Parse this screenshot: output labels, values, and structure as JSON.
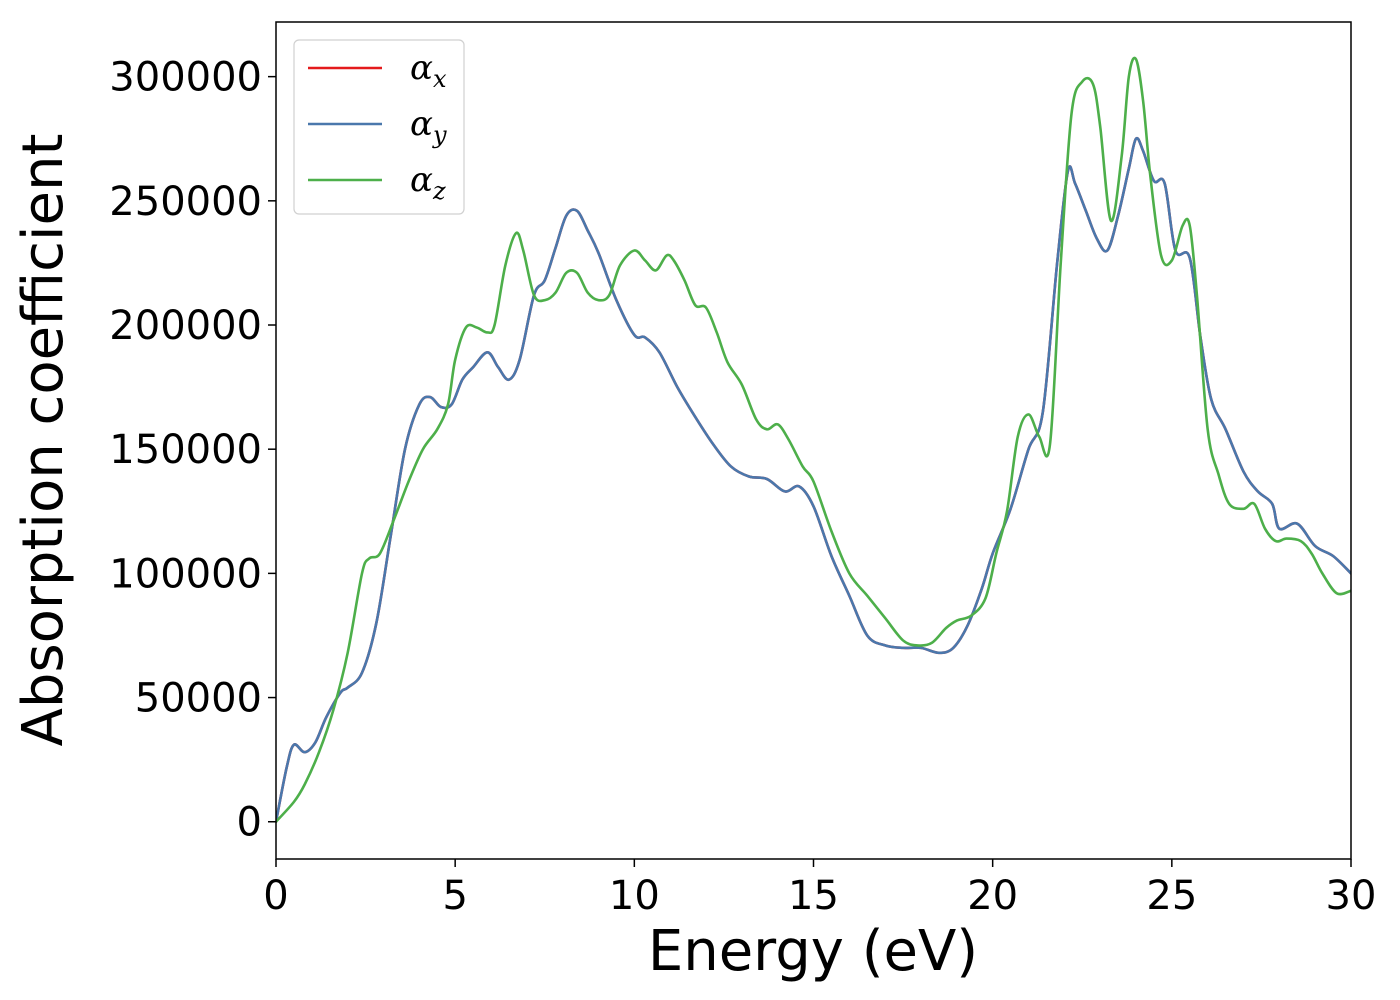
{
  "chart_data": {
    "type": "line",
    "title": "",
    "xlabel": "Energy (eV)",
    "ylabel": "Absorption coefficient",
    "xlim": [
      0,
      30
    ],
    "ylim": [
      -15000,
      322000
    ],
    "xticks": [
      0,
      5,
      10,
      15,
      20,
      25,
      30
    ],
    "yticks": [
      0,
      50000,
      100000,
      150000,
      200000,
      250000,
      300000
    ],
    "grid": false,
    "legend_position": "top-left",
    "series": [
      {
        "name": "α_x",
        "label_base": "α",
        "label_sub": "x",
        "color": "#e41a1c",
        "x": [
          0,
          0.3,
          0.5,
          0.8,
          1.1,
          1.4,
          1.8,
          2.0,
          2.4,
          2.8,
          3.2,
          3.6,
          4.0,
          4.3,
          4.6,
          4.9,
          5.2,
          5.5,
          5.9,
          6.2,
          6.5,
          6.8,
          7.2,
          7.5,
          7.8,
          8.1,
          8.4,
          8.7,
          9.0,
          9.5,
          10.0,
          10.3,
          10.7,
          11.2,
          11.7,
          12.2,
          12.7,
          13.2,
          13.7,
          14.2,
          14.6,
          15.0,
          15.5,
          16.0,
          16.5,
          17.0,
          17.5,
          18.0,
          18.5,
          18.9,
          19.3,
          19.7,
          20.0,
          20.5,
          21.0,
          21.4,
          21.8,
          22.1,
          22.3,
          22.6,
          22.9,
          23.2,
          23.5,
          23.8,
          24.0,
          24.2,
          24.5,
          24.8,
          25.1,
          25.5,
          25.8,
          26.1,
          26.5,
          27.0,
          27.4,
          27.8,
          28.0,
          28.5,
          29.0,
          29.5,
          30.0
        ],
        "values": [
          0,
          22000,
          31000,
          28000,
          32000,
          42000,
          52000,
          54000,
          60000,
          80000,
          115000,
          150000,
          168000,
          171000,
          167000,
          168000,
          178000,
          183000,
          189000,
          183000,
          178000,
          186000,
          212000,
          218000,
          231000,
          244000,
          246000,
          238000,
          229000,
          210000,
          196000,
          195000,
          189000,
          175000,
          163000,
          152000,
          143000,
          139000,
          138000,
          133000,
          135000,
          127000,
          107000,
          91000,
          75000,
          71000,
          70000,
          70000,
          68000,
          70000,
          79000,
          94000,
          108000,
          126000,
          150000,
          165000,
          225000,
          262000,
          257000,
          246000,
          235000,
          230000,
          244000,
          263000,
          275000,
          270000,
          258000,
          257000,
          230000,
          227000,
          195000,
          170000,
          158000,
          141000,
          133000,
          128000,
          118000,
          120000,
          111000,
          107000,
          100000
        ]
      },
      {
        "name": "α_y",
        "label_base": "α",
        "label_sub": "y",
        "color": "#4a78ac",
        "x": [
          0,
          0.3,
          0.5,
          0.8,
          1.1,
          1.4,
          1.8,
          2.0,
          2.4,
          2.8,
          3.2,
          3.6,
          4.0,
          4.3,
          4.6,
          4.9,
          5.2,
          5.5,
          5.9,
          6.2,
          6.5,
          6.8,
          7.2,
          7.5,
          7.8,
          8.1,
          8.4,
          8.7,
          9.0,
          9.5,
          10.0,
          10.3,
          10.7,
          11.2,
          11.7,
          12.2,
          12.7,
          13.2,
          13.7,
          14.2,
          14.6,
          15.0,
          15.5,
          16.0,
          16.5,
          17.0,
          17.5,
          18.0,
          18.5,
          18.9,
          19.3,
          19.7,
          20.0,
          20.5,
          21.0,
          21.4,
          21.8,
          22.1,
          22.3,
          22.6,
          22.9,
          23.2,
          23.5,
          23.8,
          24.0,
          24.2,
          24.5,
          24.8,
          25.1,
          25.5,
          25.8,
          26.1,
          26.5,
          27.0,
          27.4,
          27.8,
          28.0,
          28.5,
          29.0,
          29.5,
          30.0
        ],
        "values": [
          0,
          22000,
          31000,
          28000,
          32000,
          42000,
          52000,
          54000,
          60000,
          80000,
          115000,
          150000,
          168000,
          171000,
          167000,
          168000,
          178000,
          183000,
          189000,
          183000,
          178000,
          186000,
          212000,
          218000,
          231000,
          244000,
          246000,
          238000,
          229000,
          210000,
          196000,
          195000,
          189000,
          175000,
          163000,
          152000,
          143000,
          139000,
          138000,
          133000,
          135000,
          127000,
          107000,
          91000,
          75000,
          71000,
          70000,
          70000,
          68000,
          70000,
          79000,
          94000,
          108000,
          126000,
          150000,
          165000,
          225000,
          262000,
          257000,
          246000,
          235000,
          230000,
          244000,
          263000,
          275000,
          270000,
          258000,
          257000,
          230000,
          227000,
          195000,
          170000,
          158000,
          141000,
          133000,
          128000,
          118000,
          120000,
          111000,
          107000,
          100000
        ]
      },
      {
        "name": "α_z",
        "label_base": "α",
        "label_sub": "z",
        "color": "#4daf4a",
        "x": [
          0,
          0.5,
          0.8,
          1.2,
          1.6,
          2.0,
          2.4,
          2.6,
          2.9,
          3.3,
          3.7,
          4.1,
          4.5,
          4.8,
          5.0,
          5.3,
          5.6,
          5.9,
          6.1,
          6.4,
          6.7,
          6.9,
          7.2,
          7.5,
          7.8,
          8.1,
          8.4,
          8.7,
          9.0,
          9.3,
          9.6,
          10.0,
          10.3,
          10.6,
          10.9,
          11.1,
          11.4,
          11.7,
          12.0,
          12.3,
          12.6,
          13.0,
          13.4,
          13.7,
          14.0,
          14.3,
          14.7,
          15.0,
          15.5,
          16.0,
          16.5,
          17.0,
          17.5,
          17.9,
          18.3,
          18.7,
          19.0,
          19.4,
          19.8,
          20.1,
          20.4,
          20.7,
          21.0,
          21.3,
          21.6,
          21.9,
          22.2,
          22.5,
          22.8,
          23.0,
          23.3,
          23.6,
          23.8,
          24.0,
          24.2,
          24.4,
          24.7,
          25.0,
          25.3,
          25.5,
          25.7,
          26.0,
          26.3,
          26.6,
          27.0,
          27.3,
          27.6,
          27.9,
          28.2,
          28.6,
          28.9,
          29.2,
          29.6,
          30.0
        ],
        "values": [
          0,
          8000,
          15000,
          28000,
          45000,
          68000,
          100000,
          106000,
          108000,
          122000,
          137000,
          150000,
          158000,
          168000,
          186000,
          199000,
          199000,
          197000,
          200000,
          224000,
          237000,
          230000,
          212000,
          210000,
          213000,
          221000,
          221000,
          213000,
          210000,
          212000,
          224000,
          230000,
          226000,
          222000,
          228000,
          226000,
          218000,
          208000,
          207000,
          197000,
          185000,
          176000,
          162000,
          158000,
          160000,
          154000,
          143000,
          137000,
          117000,
          100000,
          91000,
          82000,
          73000,
          71000,
          72000,
          78000,
          81000,
          83000,
          90000,
          108000,
          125000,
          155000,
          164000,
          155000,
          152000,
          225000,
          285000,
          298000,
          297000,
          280000,
          242000,
          268000,
          300000,
          307000,
          290000,
          260000,
          228000,
          226000,
          240000,
          240000,
          212000,
          158000,
          140000,
          128000,
          126000,
          128000,
          118000,
          113000,
          114000,
          113000,
          108000,
          100000,
          92000,
          93000
        ]
      }
    ]
  }
}
